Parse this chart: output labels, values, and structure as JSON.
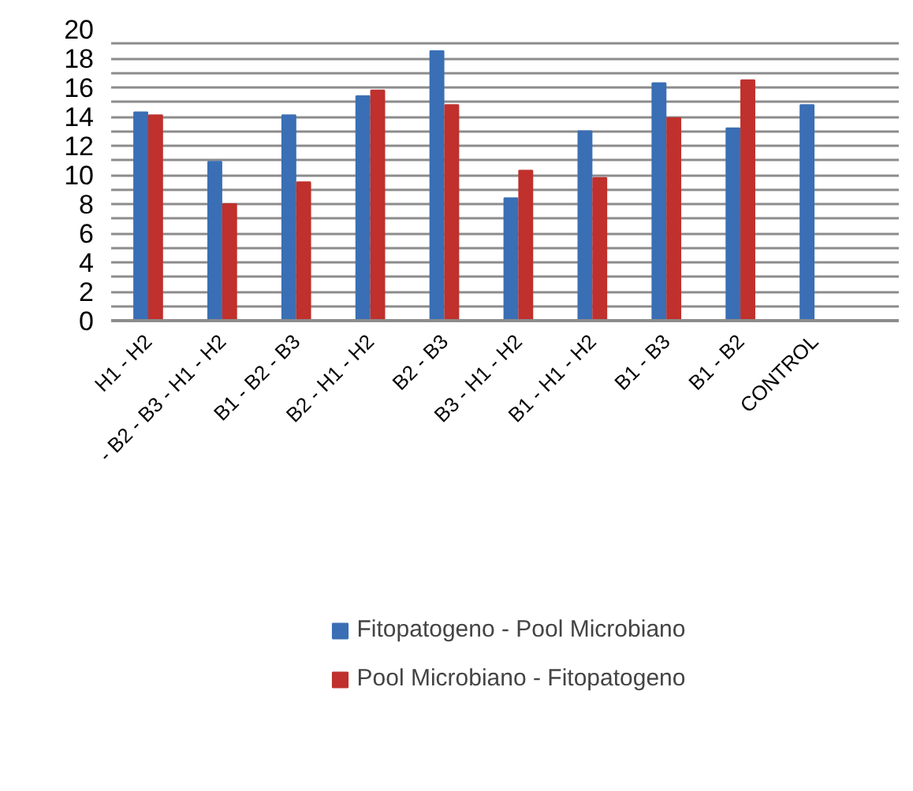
{
  "chart_data": {
    "type": "bar",
    "categories": [
      "H1 - H2",
      "- B2 - B3 - H1 - H2",
      "B1 - B2 - B3",
      "B2 - H1 - H2",
      "B2 - B3",
      "B3 - H1 - H2",
      "B1 - H1 - H2",
      "B1 - B3",
      "B1 - B2",
      "CONTROL"
    ],
    "series": [
      {
        "name": "Fitopatogeno - Pool Microbiano",
        "color": "#3a6fb5",
        "values": [
          14.3,
          10.9,
          14.1,
          15.4,
          18.5,
          8.4,
          13.0,
          16.3,
          13.2,
          14.8
        ]
      },
      {
        "name": "Pool Microbiano - Fitopatogeno",
        "color": "#c0302c",
        "values": [
          14.1,
          8.0,
          9.5,
          15.8,
          14.8,
          10.3,
          9.8,
          13.9,
          16.5,
          null
        ]
      }
    ],
    "ylim": [
      0,
      20
    ],
    "yticks": [
      0,
      {
        "value": 1,
        "label": null
      },
      2,
      {
        "value": 3,
        "label": null
      },
      4,
      {
        "value": 5,
        "label": null
      },
      6,
      {
        "value": 7,
        "label": null
      },
      8,
      {
        "value": 9,
        "label": null
      },
      10,
      {
        "value": 11,
        "label": null
      },
      12,
      {
        "value": 13,
        "label": null
      },
      14,
      {
        "value": 15,
        "label": null
      },
      16,
      {
        "value": 17,
        "label": null
      },
      18,
      {
        "value": 19,
        "label": null
      },
      20
    ],
    "grid": "y",
    "legend": "bottom"
  }
}
